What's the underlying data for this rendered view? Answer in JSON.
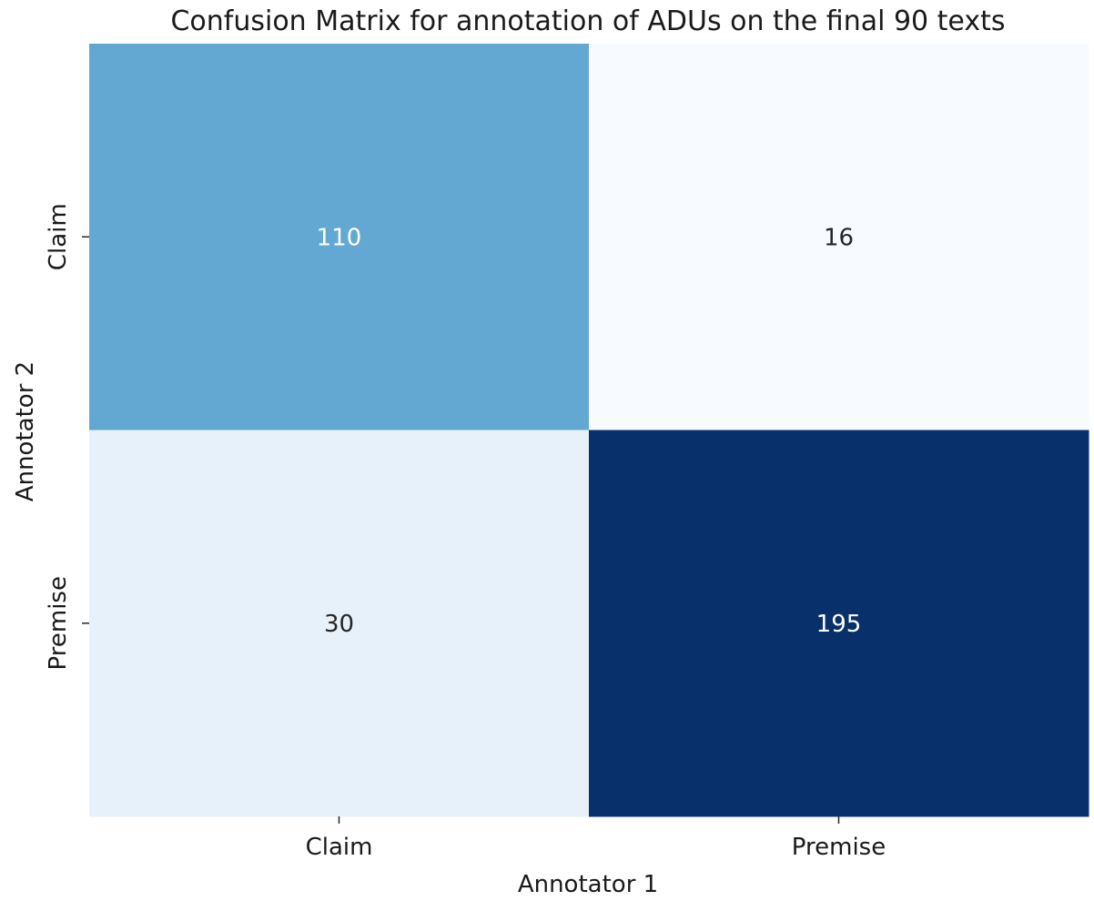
{
  "chart_data": {
    "type": "heatmap",
    "title": "Confusion Matrix for annotation of ADUs on the final 90 texts",
    "xlabel": "Annotator 1",
    "ylabel": "Annotator 2",
    "x_categories": [
      "Claim",
      "Premise"
    ],
    "y_categories": [
      "Claim",
      "Premise"
    ],
    "values": [
      [
        110,
        16
      ],
      [
        30,
        195
      ]
    ],
    "colormap": "Blues",
    "value_range": [
      16,
      195
    ],
    "colorbar": false,
    "grid": false,
    "annotations": true
  }
}
